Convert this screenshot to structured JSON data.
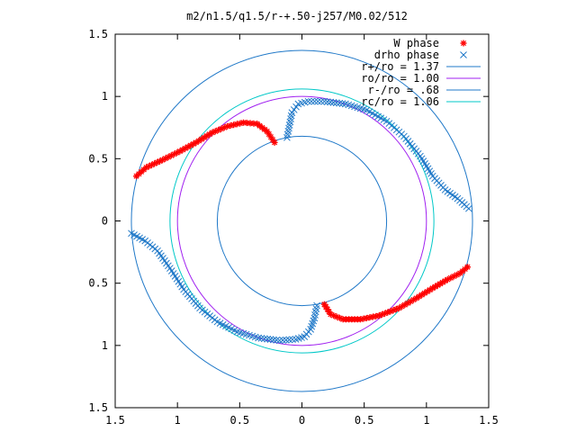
{
  "chart_data": {
    "type": "scatter",
    "title": "m2/n1.5/q1.5/r-+.50-j257/M0.02/512",
    "xlabel": "",
    "ylabel": "",
    "xlim": [
      -1.5,
      1.5
    ],
    "ylim": [
      -1.5,
      1.5
    ],
    "grid": false,
    "legend_position": "top-right",
    "x_tick_labels": [
      "1.5",
      "1",
      "0.5",
      "0",
      "0.5",
      "1",
      "1.5"
    ],
    "y_tick_labels": [
      "1.5",
      "1",
      "0.5",
      "0",
      "0.5",
      "1",
      "1.5"
    ],
    "circles": [
      {
        "name": "r+/ro = 1.37",
        "radius": 1.37,
        "color": "#1f78c8"
      },
      {
        "name": "ro/ro = 1.00",
        "radius": 1.0,
        "color": "#a020f0"
      },
      {
        "name": "r-/ro = .68",
        "radius": 0.68,
        "color": "#1f78c8"
      },
      {
        "name": "rc/ro = 1.06",
        "radius": 1.06,
        "color": "#00c8c8"
      }
    ],
    "series": [
      {
        "name": "W phase",
        "marker": "+",
        "color": "#ff0000",
        "points": [
          [
            -1.33,
            0.36
          ],
          [
            -1.25,
            0.43
          ],
          [
            -1.12,
            0.49
          ],
          [
            -0.98,
            0.56
          ],
          [
            -0.85,
            0.63
          ],
          [
            -0.72,
            0.71
          ],
          [
            -0.6,
            0.76
          ],
          [
            -0.47,
            0.79
          ],
          [
            -0.36,
            0.78
          ],
          [
            -0.28,
            0.72
          ],
          [
            -0.22,
            0.63
          ],
          [
            0.18,
            -0.67
          ],
          [
            0.23,
            -0.75
          ],
          [
            0.33,
            -0.79
          ],
          [
            0.47,
            -0.79
          ],
          [
            0.62,
            -0.76
          ],
          [
            0.78,
            -0.7
          ],
          [
            0.92,
            -0.62
          ],
          [
            1.05,
            -0.54
          ],
          [
            1.17,
            -0.47
          ],
          [
            1.27,
            -0.42
          ],
          [
            1.33,
            -0.37
          ]
        ]
      },
      {
        "name": "drho phase",
        "marker": "x",
        "color": "#1f78c8",
        "points": [
          [
            -0.12,
            0.67
          ],
          [
            -0.1,
            0.77
          ],
          [
            -0.08,
            0.87
          ],
          [
            -0.03,
            0.94
          ],
          [
            0.05,
            0.96
          ],
          [
            0.18,
            0.96
          ],
          [
            0.35,
            0.94
          ],
          [
            0.52,
            0.89
          ],
          [
            0.68,
            0.8
          ],
          [
            0.82,
            0.68
          ],
          [
            0.95,
            0.52
          ],
          [
            1.05,
            0.36
          ],
          [
            1.15,
            0.25
          ],
          [
            1.25,
            0.18
          ],
          [
            1.34,
            0.1
          ],
          [
            0.12,
            -0.68
          ],
          [
            0.1,
            -0.78
          ],
          [
            0.07,
            -0.87
          ],
          [
            0.02,
            -0.93
          ],
          [
            -0.05,
            -0.95
          ],
          [
            -0.18,
            -0.96
          ],
          [
            -0.35,
            -0.94
          ],
          [
            -0.52,
            -0.89
          ],
          [
            -0.68,
            -0.81
          ],
          [
            -0.82,
            -0.7
          ],
          [
            -0.95,
            -0.55
          ],
          [
            -1.06,
            -0.38
          ],
          [
            -1.16,
            -0.24
          ],
          [
            -1.26,
            -0.16
          ],
          [
            -1.37,
            -0.1
          ]
        ]
      }
    ]
  }
}
